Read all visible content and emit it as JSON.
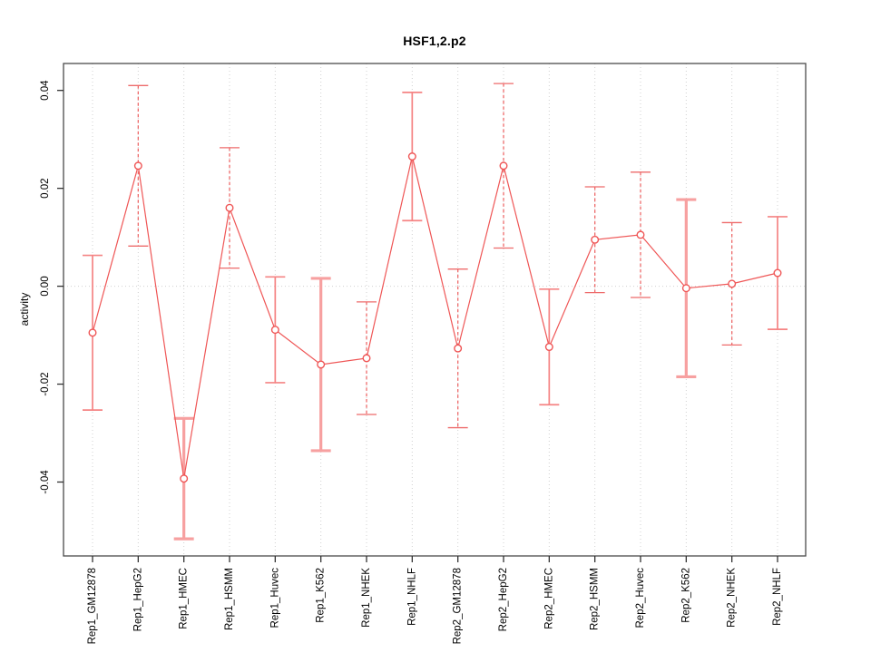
{
  "chart_data": {
    "type": "line",
    "title": "HSF1,2.p2",
    "ylabel": "activity",
    "xlabel": "",
    "categories": [
      "Rep1_GM12878",
      "Rep1_HepG2",
      "Rep1_HMEC",
      "Rep1_HSMM",
      "Rep1_Huvec",
      "Rep1_K562",
      "Rep1_NHEK",
      "Rep1_NHLF",
      "Rep2_GM12878",
      "Rep2_HepG2",
      "Rep2_HMEC",
      "Rep2_HSMM",
      "Rep2_Huvec",
      "Rep2_K562",
      "Rep2_NHEK",
      "Rep2_NHLF"
    ],
    "series": [
      {
        "name": "activity",
        "values": [
          -0.0095,
          0.0246,
          -0.0393,
          0.016,
          -0.0089,
          -0.016,
          -0.0147,
          0.0265,
          -0.0127,
          0.0246,
          -0.0124,
          0.0095,
          0.0105,
          -0.0004,
          0.0005,
          0.0027
        ],
        "errors": [
          0.0158,
          0.0164,
          0.0123,
          0.0123,
          0.0108,
          0.0176,
          0.0115,
          0.0131,
          0.0162,
          0.0168,
          0.0118,
          0.0108,
          0.0128,
          0.0181,
          0.0125,
          0.0115
        ],
        "error_bar_styles": [
          "solid",
          "dashed",
          "thick",
          "dashed",
          "solid",
          "thick",
          "dashed",
          "solid",
          "dashed",
          "dashed",
          "solid",
          "dashed",
          "dashed",
          "thick",
          "dashed",
          "solid"
        ]
      }
    ],
    "ylim": [
      -0.0551,
      0.0455
    ],
    "yticks": {
      "values": [
        0.04,
        0.02,
        0,
        -0.02,
        -0.04
      ],
      "labels": [
        "0.04",
        "0.02",
        "0.00",
        "-0.02",
        "-0.04"
      ]
    },
    "grid": {
      "vertical_dotted_per_category": true,
      "horizontal_dotted_zero_line": true
    },
    "legend_position": "none",
    "marker": "open-circle",
    "colors": {
      "series_line": "#ef5656",
      "error_bar_solid": "#f58484",
      "error_bar_dashed": "#ee6b6b",
      "error_bar_thick": "#f7a0a0",
      "marker_fill": "#ffffff",
      "grid": "#d0d0d0",
      "axis_box": "#4a4a4a",
      "tick": "#333333",
      "text": "#000000",
      "background": "#ffffff"
    }
  }
}
